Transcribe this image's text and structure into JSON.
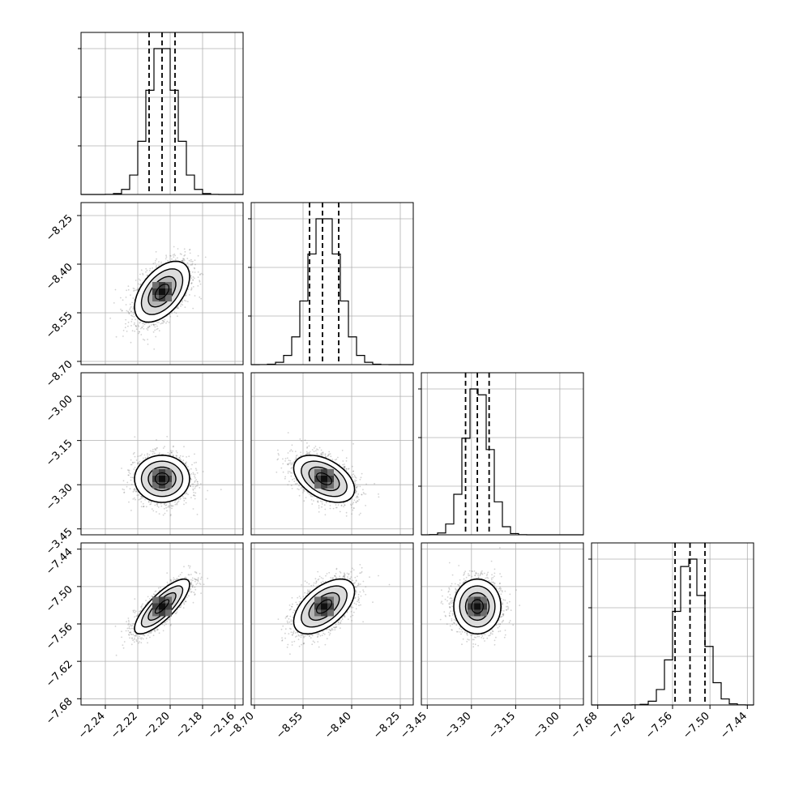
{
  "chart_data": {
    "type": "corner",
    "title": "",
    "dimensions": [
      {
        "ticks": [
          -2.24,
          -2.22,
          -2.2,
          -2.18,
          -2.16
        ],
        "tick_labels": [
          "−2.24",
          "−2.22",
          "−2.20",
          "−2.18",
          "−2.16"
        ],
        "range": [
          -2.255,
          -2.155
        ],
        "quantiles": [
          -2.213,
          -2.205,
          -2.197
        ],
        "mean": -2.205,
        "sd": 0.0085
      },
      {
        "ticks": [
          -8.7,
          -8.55,
          -8.4,
          -8.25
        ],
        "tick_labels": [
          "−8.70",
          "−8.55",
          "−8.40",
          "−8.25"
        ],
        "range": [
          -8.71,
          -8.21
        ],
        "quantiles": [
          -8.53,
          -8.49,
          -8.44
        ],
        "mean": -8.485,
        "sd": 0.047
      },
      {
        "ticks": [
          -3.45,
          -3.3,
          -3.15,
          -3.0
        ],
        "tick_labels": [
          "−3.45",
          "−3.30",
          "−3.15",
          "−3.00"
        ],
        "range": [
          -3.47,
          -2.92
        ],
        "quantiles": [
          -3.32,
          -3.28,
          -3.24
        ],
        "mean": -3.28,
        "sd": 0.04
      },
      {
        "ticks": [
          -7.68,
          -7.62,
          -7.56,
          -7.5,
          -7.44
        ],
        "tick_labels": [
          "−7.68",
          "−7.62",
          "−7.56",
          "−7.50",
          "−7.44"
        ],
        "range": [
          -7.69,
          -7.43
        ],
        "quantiles": [
          -7.556,
          -7.532,
          -7.508
        ],
        "mean": -7.532,
        "sd": 0.022
      }
    ],
    "correlations": {
      "1-0": 0.5,
      "2-0": 0.0,
      "2-1": -0.45,
      "3-0": 0.8,
      "3-1": 0.55,
      "3-2": 0.0
    },
    "histogram_bins": 20,
    "contour_levels_sigma": [
      0.5,
      1.0,
      1.5,
      2.0
    ],
    "grid": true
  }
}
